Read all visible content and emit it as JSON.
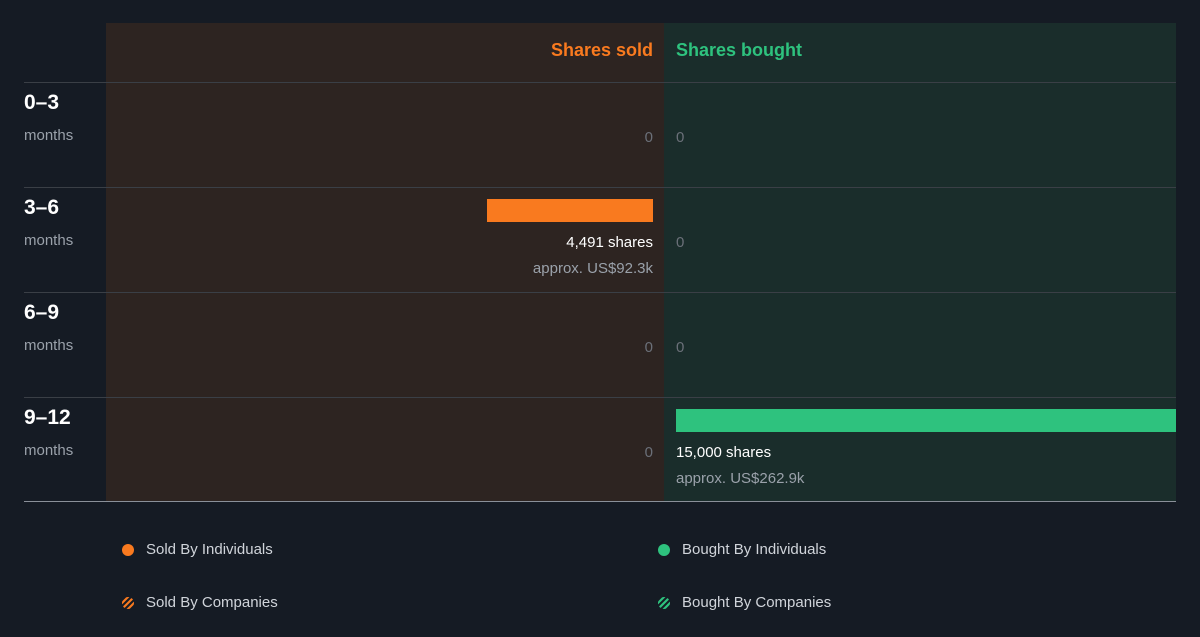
{
  "colors": {
    "sold": "#f97a1f",
    "bought": "#2ec27e",
    "sold_bg": "#2d2421",
    "bought_bg": "#1a2d2b",
    "page_bg": "#151b24"
  },
  "headers": {
    "sold": "Shares sold",
    "bought": "Shares bought"
  },
  "chart_data": {
    "type": "bar",
    "orientation": "horizontal-diverging",
    "categories": [
      "0–3",
      "3–6",
      "6–9",
      "9–12"
    ],
    "category_unit": "months",
    "series": [
      {
        "name": "Shares sold",
        "values": [
          0,
          4491,
          0,
          0
        ],
        "approx_value": [
          "",
          "approx. US$92.3k",
          "",
          ""
        ]
      },
      {
        "name": "Shares bought",
        "values": [
          0,
          0,
          0,
          15000
        ],
        "approx_value": [
          "",
          "",
          "",
          "approx. US$262.9k"
        ]
      }
    ],
    "max_value": 15000
  },
  "rows": [
    {
      "period": "0–3",
      "unit": "months",
      "sold_label": "0",
      "sold_shares": "",
      "sold_approx": "",
      "bought_label": "0",
      "bought_shares": "",
      "bought_approx": ""
    },
    {
      "period": "3–6",
      "unit": "months",
      "sold_label": "",
      "sold_shares": "4,491 shares",
      "sold_approx": "approx. US$92.3k",
      "bought_label": "0",
      "bought_shares": "",
      "bought_approx": ""
    },
    {
      "period": "6–9",
      "unit": "months",
      "sold_label": "0",
      "sold_shares": "",
      "sold_approx": "",
      "bought_label": "0",
      "bought_shares": "",
      "bought_approx": ""
    },
    {
      "period": "9–12",
      "unit": "months",
      "sold_label": "0",
      "sold_shares": "",
      "sold_approx": "",
      "bought_label": "",
      "bought_shares": "15,000 shares",
      "bought_approx": "approx. US$262.9k"
    }
  ],
  "legend": {
    "sold_individuals": "Sold By Individuals",
    "bought_individuals": "Bought By Individuals",
    "sold_companies": "Sold By Companies",
    "bought_companies": "Bought By Companies"
  }
}
